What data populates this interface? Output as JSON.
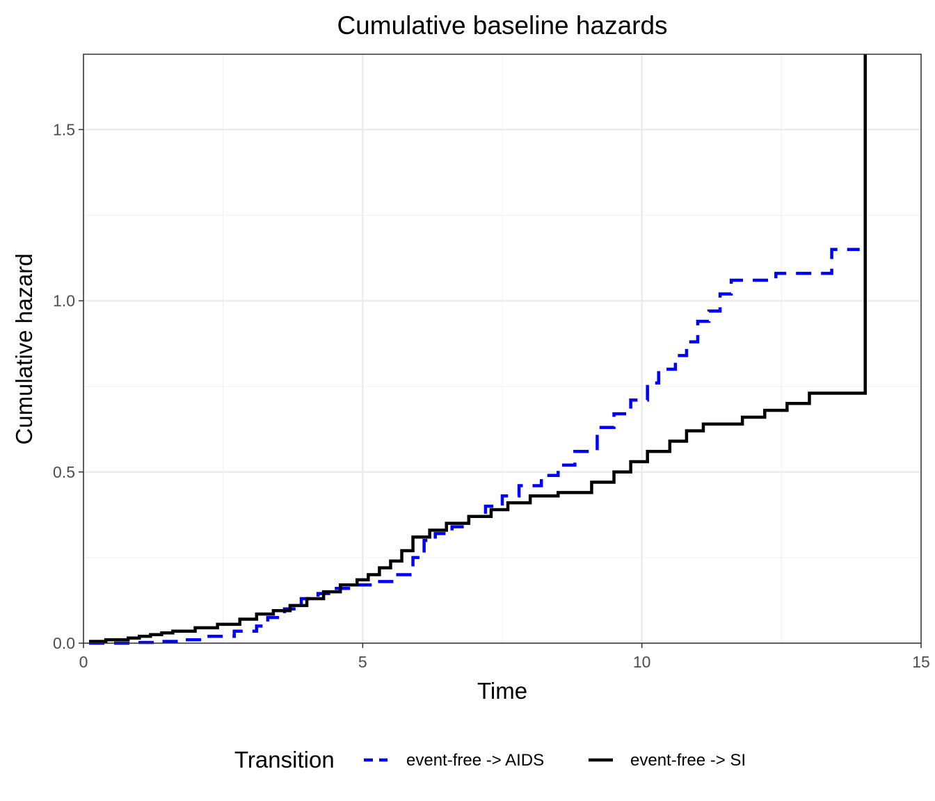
{
  "chart_data": {
    "type": "line",
    "title": "Cumulative baseline hazards",
    "xlabel": "Time",
    "ylabel": "Cumulative hazard",
    "xlim": [
      0,
      15
    ],
    "ylim": [
      0,
      1.72
    ],
    "xticks": [
      0,
      5,
      10,
      15
    ],
    "xtick_labels": [
      "0",
      "5",
      "10",
      "15"
    ],
    "yticks": [
      0,
      0.5,
      1.0,
      1.5
    ],
    "ytick_labels": [
      "0.0",
      "0.5",
      "1.0",
      "1.5"
    ],
    "x_minor": [
      2.5,
      7.5,
      12.5
    ],
    "y_minor": [
      0.25,
      0.75,
      1.25
    ],
    "grid": true,
    "legend": {
      "title": "Transition",
      "position": "bottom"
    },
    "series": [
      {
        "name": "event-free -> AIDS",
        "color": "#0000FF",
        "style": "dashed",
        "step": true,
        "x": [
          0.1,
          0.9,
          1.3,
          1.8,
          2.2,
          2.7,
          3.1,
          3.3,
          3.6,
          3.9,
          4.2,
          4.5,
          4.8,
          5.2,
          5.6,
          5.9,
          6.1,
          6.3,
          6.6,
          6.9,
          7.2,
          7.5,
          7.8,
          8.2,
          8.5,
          8.8,
          9.2,
          9.5,
          9.8,
          10.1,
          10.3,
          10.6,
          10.8,
          11.0,
          11.2,
          11.4,
          11.6,
          12.4,
          13.4,
          13.9
        ],
        "y": [
          0,
          0.002,
          0.005,
          0.01,
          0.02,
          0.035,
          0.05,
          0.075,
          0.1,
          0.13,
          0.145,
          0.16,
          0.17,
          0.18,
          0.2,
          0.25,
          0.3,
          0.32,
          0.34,
          0.37,
          0.4,
          0.43,
          0.46,
          0.49,
          0.52,
          0.56,
          0.63,
          0.67,
          0.71,
          0.76,
          0.8,
          0.84,
          0.88,
          0.94,
          0.97,
          1.02,
          1.06,
          1.08,
          1.15,
          1.15
        ]
      },
      {
        "name": "event-free -> SI",
        "color": "#000000",
        "style": "solid",
        "step": true,
        "x": [
          0.1,
          0.4,
          0.8,
          1.0,
          1.2,
          1.4,
          1.6,
          2.0,
          2.4,
          2.8,
          3.1,
          3.4,
          3.7,
          4.0,
          4.3,
          4.6,
          4.9,
          5.1,
          5.3,
          5.5,
          5.7,
          5.9,
          6.2,
          6.5,
          6.9,
          7.3,
          7.6,
          8.0,
          8.5,
          9.1,
          9.5,
          9.8,
          10.1,
          10.5,
          10.8,
          11.1,
          11.8,
          12.2,
          12.6,
          13.0,
          14.0
        ],
        "y": [
          0.005,
          0.01,
          0.015,
          0.02,
          0.025,
          0.03,
          0.035,
          0.045,
          0.055,
          0.07,
          0.085,
          0.095,
          0.11,
          0.13,
          0.15,
          0.17,
          0.185,
          0.2,
          0.22,
          0.24,
          0.27,
          0.31,
          0.33,
          0.35,
          0.37,
          0.39,
          0.41,
          0.43,
          0.44,
          0.47,
          0.5,
          0.53,
          0.56,
          0.59,
          0.62,
          0.64,
          0.66,
          0.68,
          0.7,
          0.73,
          1.72
        ]
      }
    ]
  }
}
